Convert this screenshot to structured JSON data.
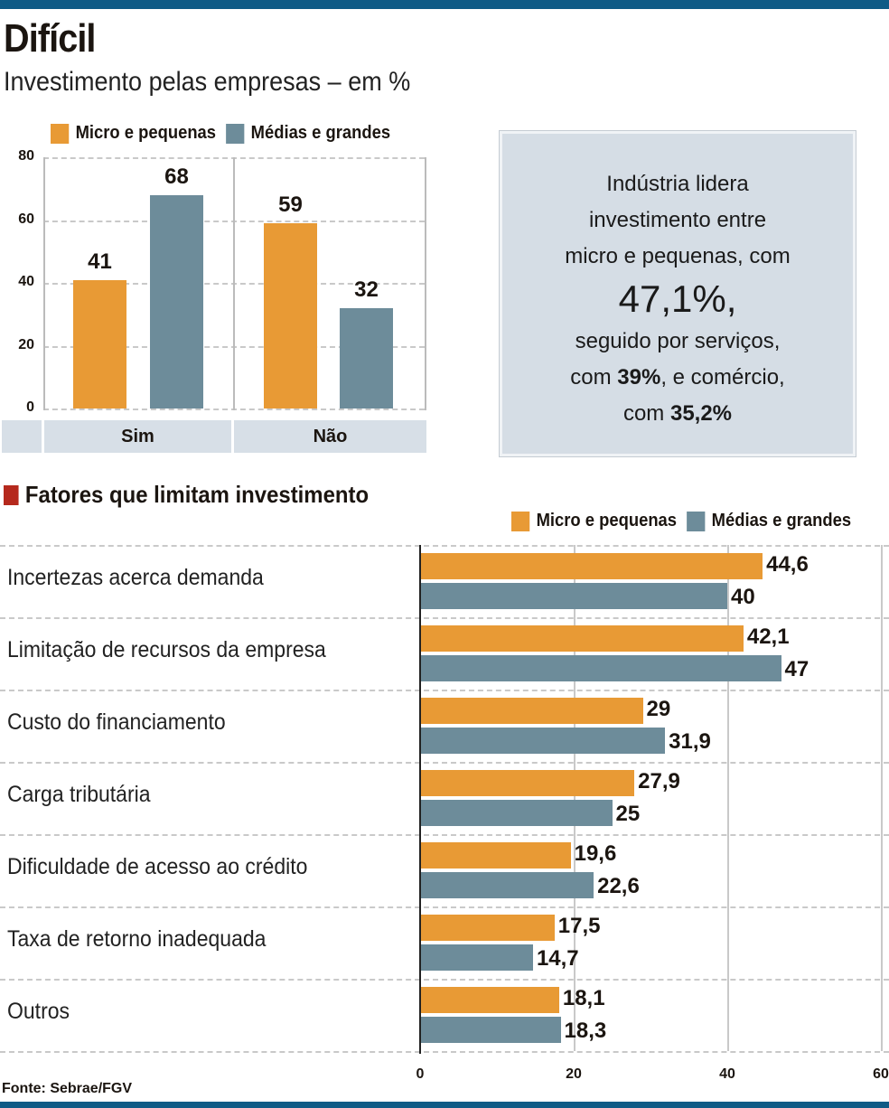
{
  "title": "Difícil",
  "subtitle": "Investimento pelas empresas  – em %",
  "colors": {
    "micro": "#e89a35",
    "medias": "#6d8c9a",
    "accent": "#0f5b86",
    "section_marker": "#b5291d"
  },
  "legend": {
    "micro": "Micro e pequenas",
    "medias": "Médias e grandes"
  },
  "info_box": {
    "line1": "Indústria lidera",
    "line2": "investimento entre",
    "line3": "micro e pequenas, com",
    "highlight": "47,1%,",
    "line4": "seguido por serviços,",
    "line5_pre": "com ",
    "line5_bold": "39%",
    "line5_post": ", e comércio,",
    "line6_pre": "com ",
    "line6_bold": "35,2%"
  },
  "section_title": "Fatores que limitam investimento",
  "source": "Fonte: Sebrae/FGV",
  "chart_data": [
    {
      "type": "bar",
      "orientation": "vertical",
      "categories": [
        "Sim",
        "Não"
      ],
      "series": [
        {
          "name": "Micro e pequenas",
          "values": [
            41,
            59
          ],
          "labels": [
            "41",
            "59"
          ]
        },
        {
          "name": "Médias e grandes",
          "values": [
            68,
            32
          ],
          "labels": [
            "68",
            "32"
          ]
        }
      ],
      "ylim": [
        0,
        80
      ],
      "yticks": [
        "0",
        "20",
        "40",
        "60",
        "80"
      ],
      "grid": true,
      "legend": "top"
    },
    {
      "type": "bar",
      "orientation": "horizontal",
      "categories": [
        "Incertezas acerca demanda",
        "Limitação de recursos da empresa",
        "Custo do financiamento",
        "Carga tributária",
        "Dificuldade de acesso ao crédito",
        "Taxa de retorno inadequada",
        "Outros"
      ],
      "series": [
        {
          "name": "Micro e pequenas",
          "values": [
            44.6,
            42.1,
            29,
            27.9,
            19.6,
            17.5,
            18.1
          ],
          "labels": [
            "44,6",
            "42,1",
            "29",
            "27,9",
            "19,6",
            "17,5",
            "18,1"
          ]
        },
        {
          "name": "Médias e grandes",
          "values": [
            40,
            47,
            31.9,
            25,
            22.6,
            14.7,
            18.3
          ],
          "labels": [
            "40",
            "47",
            "31,9",
            "25",
            "22,6",
            "14,7",
            "18,3"
          ]
        }
      ],
      "xlim": [
        0,
        60
      ],
      "xticks": [
        "0",
        "20",
        "40",
        "60"
      ],
      "grid": true,
      "legend": "top-right"
    }
  ]
}
